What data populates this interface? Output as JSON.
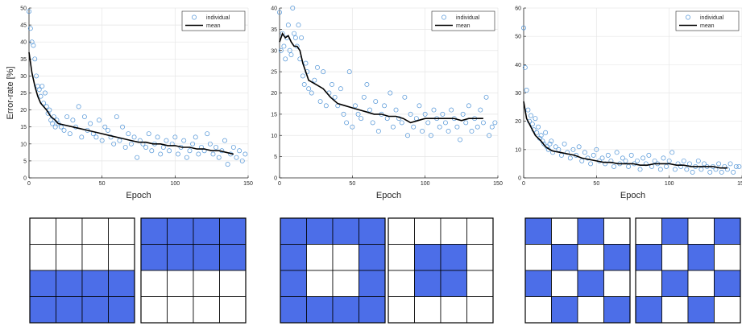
{
  "colors": {
    "individual": "#4f93d6",
    "mean": "#000000",
    "cell_filled": "#4c6ee8",
    "cell_empty": "#ffffff",
    "grid": "#000000"
  },
  "chart_data": [
    {
      "type": "scatter",
      "xlabel": "Epoch",
      "ylabel": "Error-rate [%]",
      "xlim": [
        0,
        150
      ],
      "ylim": [
        0,
        50
      ],
      "xticks": [
        "0",
        "50",
        "100",
        "150"
      ],
      "yticks": [
        "0",
        "5",
        "10",
        "15",
        "20",
        "25",
        "30",
        "35",
        "40",
        "45",
        "50"
      ],
      "legend": {
        "position": "top-right",
        "entries": [
          "individual",
          "mean"
        ]
      },
      "series": [
        {
          "name": "individual",
          "marker": "circle",
          "x": [
            0,
            1,
            2,
            3,
            4,
            5,
            6,
            7,
            8,
            9,
            10,
            11,
            12,
            13,
            14,
            15,
            16,
            17,
            18,
            19,
            20,
            22,
            24,
            26,
            28,
            30,
            32,
            34,
            36,
            38,
            40,
            42,
            44,
            46,
            48,
            50,
            52,
            54,
            56,
            58,
            60,
            62,
            64,
            66,
            68,
            70,
            72,
            74,
            76,
            78,
            80,
            82,
            84,
            86,
            88,
            90,
            92,
            94,
            96,
            98,
            100,
            102,
            104,
            106,
            108,
            110,
            112,
            114,
            116,
            118,
            120,
            122,
            124,
            126,
            128,
            130,
            132,
            134,
            136,
            138,
            140,
            142,
            144,
            146,
            148
          ],
          "y": [
            49,
            44,
            40,
            39,
            35,
            30,
            27,
            26,
            24,
            27,
            22,
            25,
            21,
            19,
            20,
            17,
            16,
            18,
            15,
            17,
            16,
            15,
            14,
            18,
            13,
            17,
            15,
            21,
            12,
            18,
            14,
            16,
            13,
            12,
            17,
            11,
            15,
            14,
            12,
            10,
            18,
            11,
            15,
            9,
            13,
            10,
            12,
            6,
            11,
            10,
            9,
            13,
            8,
            10,
            12,
            7,
            9,
            11,
            8,
            10,
            12,
            7,
            9,
            11,
            6,
            8,
            10,
            12,
            7,
            9,
            8,
            13,
            10,
            7,
            9,
            6,
            8,
            11,
            4,
            7,
            9,
            6,
            8,
            5,
            7
          ]
        },
        {
          "name": "mean",
          "marker": "line",
          "x": [
            0,
            2,
            4,
            6,
            8,
            10,
            12,
            15,
            18,
            20,
            25,
            30,
            35,
            40,
            45,
            50,
            55,
            60,
            65,
            70,
            75,
            80,
            85,
            90,
            95,
            100,
            105,
            110,
            115,
            120,
            125,
            130,
            135,
            140
          ],
          "y": [
            37,
            31,
            27,
            24,
            22,
            21,
            20,
            18,
            17,
            16,
            15.5,
            15,
            14.5,
            14,
            13.5,
            13,
            12.5,
            12,
            11.5,
            11,
            10.5,
            10.5,
            10,
            10,
            9.5,
            9.5,
            9,
            9,
            8.5,
            8.5,
            8,
            8,
            7.5,
            7
          ]
        }
      ]
    },
    {
      "type": "scatter",
      "xlabel": "Epoch",
      "ylabel": "",
      "xlim": [
        0,
        150
      ],
      "ylim": [
        0,
        40
      ],
      "xticks": [
        "0",
        "50",
        "100",
        "150"
      ],
      "yticks": [
        "0",
        "5",
        "10",
        "15",
        "20",
        "25",
        "30",
        "35",
        "40"
      ],
      "legend": {
        "position": "top-right",
        "entries": [
          "individual",
          "mean"
        ]
      },
      "series": [
        {
          "name": "individual",
          "marker": "circle",
          "x": [
            0,
            1,
            2,
            3,
            4,
            5,
            6,
            7,
            8,
            9,
            10,
            11,
            12,
            13,
            14,
            15,
            16,
            17,
            18,
            19,
            20,
            22,
            24,
            26,
            28,
            30,
            32,
            34,
            36,
            38,
            40,
            42,
            44,
            46,
            48,
            50,
            52,
            54,
            56,
            58,
            60,
            62,
            64,
            66,
            68,
            70,
            72,
            74,
            76,
            78,
            80,
            82,
            84,
            86,
            88,
            90,
            92,
            94,
            96,
            98,
            100,
            102,
            104,
            106,
            108,
            110,
            112,
            114,
            116,
            118,
            120,
            122,
            124,
            126,
            128,
            130,
            132,
            134,
            136,
            138,
            140,
            142,
            144,
            146,
            148
          ],
          "y": [
            39,
            30,
            34,
            31,
            28,
            33,
            36,
            30,
            29,
            40,
            34,
            33,
            31,
            36,
            28,
            33,
            24,
            22,
            27,
            25,
            21,
            20,
            23,
            26,
            18,
            25,
            17,
            20,
            22,
            19,
            17,
            21,
            15,
            13,
            25,
            12,
            17,
            15,
            14,
            19,
            22,
            16,
            13,
            18,
            11,
            15,
            17,
            14,
            20,
            12,
            16,
            14,
            13,
            19,
            10,
            15,
            12,
            14,
            17,
            11,
            15,
            13,
            10,
            16,
            14,
            12,
            15,
            13,
            11,
            16,
            14,
            12,
            9,
            15,
            13,
            17,
            11,
            14,
            12,
            16,
            13,
            19,
            10,
            12,
            13
          ]
        },
        {
          "name": "mean",
          "marker": "line",
          "x": [
            0,
            2,
            4,
            6,
            8,
            10,
            12,
            14,
            16,
            18,
            20,
            25,
            30,
            35,
            40,
            45,
            50,
            55,
            60,
            65,
            70,
            75,
            80,
            85,
            90,
            95,
            100,
            105,
            110,
            115,
            120,
            125,
            130,
            135,
            140
          ],
          "y": [
            32,
            34,
            33,
            33.5,
            32,
            31,
            31,
            30,
            27,
            25,
            23,
            22,
            21,
            19,
            17.5,
            17,
            16.5,
            16,
            15.5,
            15,
            15,
            14.5,
            14.5,
            14,
            13,
            13.5,
            14,
            14,
            14,
            14,
            14,
            13.5,
            14,
            14,
            14
          ]
        }
      ]
    },
    {
      "type": "scatter",
      "xlabel": "Epoch",
      "ylabel": "",
      "xlim": [
        0,
        150
      ],
      "ylim": [
        0,
        60
      ],
      "xticks": [
        "0",
        "50",
        "100",
        "150"
      ],
      "yticks": [
        "0",
        "10",
        "20",
        "30",
        "40",
        "50",
        "60"
      ],
      "legend": {
        "position": "top-right",
        "entries": [
          "individual",
          "mean"
        ]
      },
      "series": [
        {
          "name": "individual",
          "marker": "circle",
          "x": [
            0,
            1,
            2,
            3,
            4,
            5,
            6,
            7,
            8,
            9,
            10,
            11,
            12,
            13,
            14,
            15,
            16,
            17,
            18,
            19,
            20,
            22,
            24,
            26,
            28,
            30,
            32,
            34,
            36,
            38,
            40,
            42,
            44,
            46,
            48,
            50,
            52,
            54,
            56,
            58,
            60,
            62,
            64,
            66,
            68,
            70,
            72,
            74,
            76,
            78,
            80,
            82,
            84,
            86,
            88,
            90,
            92,
            94,
            96,
            98,
            100,
            102,
            104,
            106,
            108,
            110,
            112,
            114,
            116,
            118,
            120,
            122,
            124,
            126,
            128,
            130,
            132,
            134,
            136,
            138,
            140,
            142,
            144,
            146,
            148
          ],
          "y": [
            53,
            39,
            31,
            24,
            20,
            22,
            19,
            17,
            21,
            16,
            18,
            14,
            15,
            13,
            12,
            16,
            11,
            10,
            12,
            13,
            9,
            11,
            10,
            8,
            12,
            9,
            7,
            10,
            8,
            11,
            6,
            9,
            7,
            5,
            8,
            10,
            6,
            7,
            5,
            8,
            6,
            4,
            9,
            5,
            7,
            6,
            4,
            8,
            5,
            6,
            3,
            7,
            5,
            8,
            4,
            6,
            5,
            3,
            7,
            4,
            6,
            9,
            3,
            5,
            4,
            6,
            3,
            5,
            2,
            4,
            6,
            3,
            5,
            4,
            2,
            4,
            3,
            5,
            2,
            4,
            3,
            5,
            2,
            4,
            4
          ]
        },
        {
          "name": "mean",
          "marker": "line",
          "x": [
            0,
            2,
            4,
            6,
            8,
            10,
            12,
            15,
            18,
            20,
            25,
            30,
            35,
            40,
            45,
            50,
            55,
            60,
            65,
            70,
            75,
            80,
            85,
            90,
            95,
            100,
            105,
            110,
            115,
            120,
            125,
            130,
            135,
            140
          ],
          "y": [
            27,
            21,
            19,
            17,
            15,
            14,
            13,
            11,
            10,
            9.5,
            9,
            8.5,
            8,
            7,
            6.5,
            6,
            5.5,
            5.5,
            5,
            5,
            5,
            4.5,
            4.5,
            5,
            5,
            5,
            4.5,
            4.5,
            4,
            4,
            4,
            4,
            3.5,
            3.5
          ]
        }
      ]
    }
  ],
  "patterns": [
    {
      "name": "horizontal-bars-bottom",
      "grid": [
        [
          0,
          0,
          0,
          0
        ],
        [
          0,
          0,
          0,
          0
        ],
        [
          1,
          1,
          1,
          1
        ],
        [
          1,
          1,
          1,
          1
        ]
      ]
    },
    {
      "name": "horizontal-bars-top",
      "grid": [
        [
          1,
          1,
          1,
          1
        ],
        [
          1,
          1,
          1,
          1
        ],
        [
          0,
          0,
          0,
          0
        ],
        [
          0,
          0,
          0,
          0
        ]
      ]
    },
    {
      "name": "ring",
      "grid": [
        [
          1,
          1,
          1,
          1
        ],
        [
          1,
          0,
          0,
          1
        ],
        [
          1,
          0,
          0,
          1
        ],
        [
          1,
          1,
          1,
          1
        ]
      ]
    },
    {
      "name": "center-block",
      "grid": [
        [
          0,
          0,
          0,
          0
        ],
        [
          0,
          1,
          1,
          0
        ],
        [
          0,
          1,
          1,
          0
        ],
        [
          0,
          0,
          0,
          0
        ]
      ]
    },
    {
      "name": "checkerboard-a",
      "grid": [
        [
          1,
          0,
          1,
          0
        ],
        [
          0,
          1,
          0,
          1
        ],
        [
          1,
          0,
          1,
          0
        ],
        [
          0,
          1,
          0,
          1
        ]
      ]
    },
    {
      "name": "checkerboard-b",
      "grid": [
        [
          0,
          1,
          0,
          1
        ],
        [
          1,
          0,
          1,
          0
        ],
        [
          0,
          1,
          0,
          1
        ],
        [
          1,
          0,
          1,
          0
        ]
      ]
    }
  ]
}
